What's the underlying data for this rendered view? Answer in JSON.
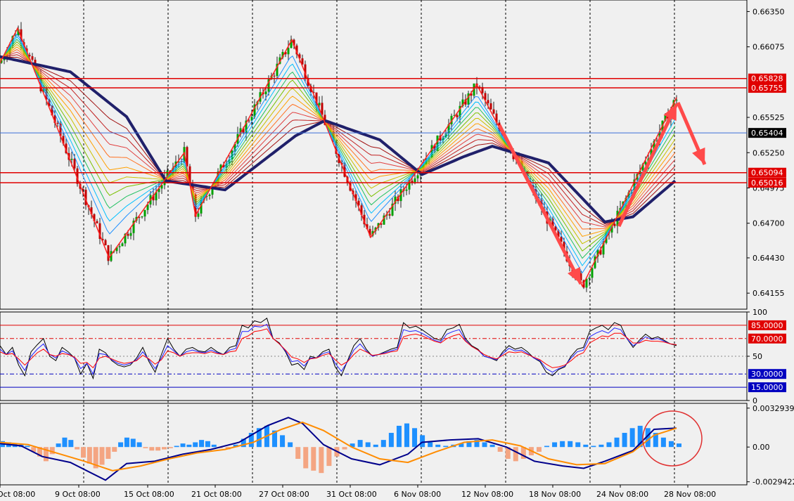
{
  "chart_data": [
    {
      "type": "candlestick",
      "panel": "price",
      "ylim": [
        0.6403,
        0.6644
      ],
      "y_ticks": [
        "0.66350",
        "0.66075",
        "0.65525",
        "0.65250",
        "0.64975",
        "0.64700",
        "0.64430",
        "0.64155"
      ],
      "x_labels": [
        "Oct 08:00",
        "9 Oct 08:00",
        "15 Oct 08:00",
        "21 Oct 08:00",
        "27 Oct 08:00",
        "31 Oct 08:00",
        "6 Nov 08:00",
        "12 Nov 08:00",
        "18 Nov 08:00",
        "24 Nov 08:00",
        "28 Nov 08:00"
      ],
      "horizontal_levels": [
        {
          "label": "0.65828",
          "value": 0.65828,
          "color": "#e00000"
        },
        {
          "label": "0.65755",
          "value": 0.65755,
          "color": "#e00000"
        },
        {
          "label": "0.65404",
          "value": 0.65404,
          "color": "#000000"
        },
        {
          "label": "0.65094",
          "value": 0.65094,
          "color": "#e00000"
        },
        {
          "label": "0.65016",
          "value": 0.65016,
          "color": "#e00000"
        }
      ],
      "zigzag_points": [
        [
          0,
          0.6595
        ],
        [
          25,
          0.6622
        ],
        [
          155,
          0.6443
        ],
        [
          262,
          0.6525
        ],
        [
          278,
          0.6476
        ],
        [
          415,
          0.6613
        ],
        [
          527,
          0.6459
        ],
        [
          678,
          0.6578
        ],
        [
          828,
          0.6421
        ],
        [
          962,
          0.6568
        ]
      ],
      "trend_line": [
        [
          -10,
          0.6601
        ],
        [
          100,
          0.6588
        ],
        [
          180,
          0.6553
        ],
        [
          236,
          0.6503
        ],
        [
          320,
          0.6496
        ],
        [
          420,
          0.6538
        ],
        [
          462,
          0.655
        ],
        [
          540,
          0.6535
        ],
        [
          600,
          0.6508
        ],
        [
          660,
          0.6522
        ],
        [
          700,
          0.653
        ],
        [
          780,
          0.6517
        ],
        [
          860,
          0.6471
        ],
        [
          900,
          0.6475
        ],
        [
          962,
          0.6504
        ]
      ],
      "colors": {
        "up": "#00a000",
        "down": "#c00000",
        "zigzag": "#ff2020",
        "trend": "#20206a"
      }
    },
    {
      "type": "line",
      "panel": "stochastic",
      "ylim": [
        0,
        100
      ],
      "y_ticks": [
        "100",
        "50",
        "0"
      ],
      "levels": [
        {
          "label": "85.0000",
          "value": 85,
          "color": "#e00000"
        },
        {
          "label": "70.0000",
          "value": 70,
          "color": "#e00000"
        },
        {
          "label": "30.0000",
          "value": 30,
          "color": "#0000c0"
        },
        {
          "label": "15.0000",
          "value": 15,
          "color": "#0000c0"
        }
      ],
      "series": [
        {
          "values": [
            62,
            52,
            60,
            40,
            28,
            55,
            63,
            70,
            50,
            45,
            60,
            55,
            48,
            30,
            42,
            25,
            58,
            54,
            45,
            40,
            38,
            40,
            48,
            60,
            44,
            32,
            52,
            70,
            58,
            50,
            58,
            60,
            56,
            55,
            60,
            55,
            52,
            60,
            62,
            85,
            82,
            90,
            88,
            93,
            70,
            65,
            55,
            40,
            42,
            35,
            50,
            48,
            55,
            58,
            38,
            28,
            45,
            62,
            70,
            58,
            50,
            52,
            55,
            58,
            60,
            88,
            82,
            84,
            80,
            75,
            70,
            68,
            80,
            82,
            86,
            70,
            62,
            58,
            50,
            48,
            45,
            55,
            62,
            58,
            60,
            55,
            48,
            44,
            32,
            28,
            35,
            38,
            50,
            58,
            60,
            78,
            82,
            85,
            80,
            88,
            85,
            70,
            60,
            68,
            75,
            70,
            72,
            68,
            64,
            62
          ]
        },
        {
          "values": [
            58,
            52,
            56,
            44,
            34,
            50,
            58,
            64,
            52,
            48,
            56,
            53,
            48,
            36,
            42,
            30,
            53,
            52,
            46,
            42,
            40,
            42,
            46,
            55,
            46,
            36,
            48,
            62,
            56,
            50,
            55,
            57,
            55,
            54,
            57,
            54,
            52,
            57,
            59,
            78,
            78,
            84,
            83,
            86,
            70,
            64,
            56,
            44,
            45,
            39,
            48,
            48,
            53,
            55,
            42,
            33,
            44,
            57,
            64,
            56,
            50,
            52,
            54,
            56,
            58,
            80,
            78,
            79,
            76,
            72,
            68,
            66,
            75,
            78,
            80,
            68,
            61,
            57,
            50,
            48,
            46,
            53,
            59,
            56,
            57,
            53,
            48,
            45,
            36,
            32,
            36,
            39,
            48,
            55,
            57,
            72,
            76,
            79,
            76,
            82,
            80,
            70,
            62,
            66,
            72,
            69,
            70,
            67,
            64,
            63
          ]
        },
        {
          "values": [
            55,
            52,
            53,
            47,
            40,
            47,
            54,
            58,
            52,
            50,
            53,
            52,
            49,
            42,
            43,
            37,
            48,
            50,
            47,
            44,
            42,
            43,
            45,
            51,
            47,
            41,
            46,
            56,
            54,
            50,
            53,
            54,
            54,
            53,
            55,
            53,
            52,
            55,
            56,
            70,
            73,
            78,
            79,
            81,
            70,
            64,
            57,
            49,
            47,
            43,
            47,
            48,
            51,
            53,
            46,
            40,
            44,
            52,
            58,
            55,
            51,
            52,
            53,
            55,
            56,
            72,
            74,
            75,
            73,
            70,
            67,
            65,
            70,
            73,
            75,
            67,
            61,
            57,
            52,
            49,
            47,
            51,
            55,
            54,
            55,
            52,
            49,
            46,
            41,
            37,
            38,
            40,
            45,
            51,
            54,
            65,
            69,
            73,
            72,
            76,
            76,
            71,
            65,
            65,
            68,
            67,
            67,
            66,
            64,
            63
          ]
        }
      ],
      "series_colors": [
        "#000000",
        "#2020ff",
        "#ff0000"
      ]
    },
    {
      "type": "bar",
      "panel": "oscillator",
      "ylim": [
        -0.0032,
        0.0037
      ],
      "y_ticks": [
        "0.0032939",
        "0.00",
        "-0.0029422"
      ],
      "histogram": [
        0.0005,
        0.0004,
        0.0003,
        0.0002,
        0.0001,
        -0.0004,
        -0.0008,
        -0.0012,
        -0.0006,
        0.0003,
        0.0008,
        0.0006,
        -0.0002,
        -0.0009,
        -0.0014,
        -0.0018,
        -0.0015,
        -0.001,
        -0.0004,
        0.0004,
        0.0008,
        0.0007,
        0.0004,
        -0.0001,
        -0.0003,
        -0.0003,
        -0.0002,
        -0.0001,
        0.0001,
        0.0003,
        0.0002,
        0.0004,
        0.0006,
        0.0005,
        0.0002,
        -0.0001,
        -0.0002,
        0.0002,
        0.0007,
        0.0012,
        0.0016,
        0.0018,
        0.0014,
        0.001,
        0.0004,
        -0.001,
        -0.0018,
        -0.002,
        -0.0022,
        -0.0016,
        -0.0008,
        -0.0002,
        0.0003,
        0.0006,
        0.0004,
        0.0002,
        0.0006,
        0.0012,
        0.0018,
        0.002,
        0.0016,
        0.001,
        0.0004,
        0.0002,
        0.0001,
        0.0002,
        0.0003,
        0.0005,
        0.0006,
        0.0004,
        0.0002,
        -0.0004,
        -0.001,
        -0.0012,
        -0.001,
        -0.0007,
        -0.0004,
        0.0001,
        0.0004,
        0.0005,
        0.0005,
        0.0004,
        0.0002,
        0.0001,
        0.0002,
        0.0004,
        0.0008,
        0.0012,
        0.0016,
        0.0018,
        0.0016,
        0.0012,
        0.0008,
        0.0005,
        0.0003
      ],
      "histogram_x": [
        0,
        8,
        16,
        24,
        32,
        40,
        48,
        56,
        64,
        72,
        80,
        88,
        96,
        104,
        112,
        120,
        128,
        136,
        144,
        152,
        160,
        168,
        176,
        184,
        192,
        200,
        208,
        216,
        224,
        232,
        240,
        248,
        256,
        264,
        272,
        280,
        290,
        300,
        310,
        320,
        330,
        340,
        350,
        360,
        370,
        380,
        390,
        400,
        410,
        420,
        430,
        440,
        450,
        460,
        470,
        480,
        490,
        500,
        510,
        520,
        530,
        540,
        550,
        560,
        570,
        580,
        590,
        600,
        610,
        620,
        630,
        640,
        650,
        660,
        670,
        680,
        690,
        700,
        710,
        720,
        730,
        740,
        750,
        760,
        770,
        780,
        790,
        800,
        810,
        820,
        830,
        840,
        850,
        860,
        870
      ],
      "series": [
        {
          "x": [
            0,
            30,
            60,
            100,
            150,
            180,
            220,
            260,
            300,
            340,
            380,
            410,
            430,
            460,
            500,
            540,
            580,
            600,
            640,
            680,
            720,
            760,
            800,
            830,
            860,
            900,
            930,
            962
          ],
          "values": [
            0.0003,
            0.0001,
            -0.0008,
            -0.0013,
            -0.0028,
            -0.0014,
            -0.0012,
            -0.0006,
            -0.0002,
            0.0004,
            0.0018,
            0.0025,
            0.002,
            0.0002,
            -0.001,
            -0.0015,
            -0.0006,
            0.0004,
            0.0006,
            0.0007,
            0.0,
            -0.0012,
            -0.0016,
            -0.0018,
            -0.0012,
            -0.0003,
            0.0015,
            0.0016
          ]
        },
        {
          "x": [
            0,
            40,
            80,
            120,
            160,
            200,
            240,
            280,
            320,
            360,
            400,
            430,
            460,
            500,
            540,
            580,
            620,
            660,
            700,
            740,
            780,
            820,
            860,
            900,
            930,
            962
          ],
          "values": [
            0.0004,
            0.0002,
            -0.0005,
            -0.0012,
            -0.002,
            -0.0016,
            -0.001,
            -0.0005,
            -0.0002,
            0.0004,
            0.0015,
            0.0021,
            0.0014,
            0.0,
            -0.001,
            -0.0013,
            -0.0004,
            0.0004,
            0.0006,
            0.0001,
            -0.001,
            -0.0015,
            -0.0014,
            -0.0004,
            0.001,
            0.0016
          ]
        }
      ],
      "series_colors": [
        "#00008b",
        "#ff8c00"
      ],
      "colors": {
        "positive": "#1e90ff",
        "negative": "#f4a582"
      }
    }
  ],
  "annotations": {
    "arrows_color": "#ff4a4a",
    "circle_color": "#e03030"
  },
  "axis": {
    "time_labels": [
      "Oct 08:00",
      "9 Oct 08:00",
      "15 Oct 08:00",
      "21 Oct 08:00",
      "27 Oct 08:00",
      "31 Oct 08:00",
      "6 Nov 08:00",
      "12 Nov 08:00",
      "18 Nov 08:00",
      "24 Nov 08:00",
      "28 Nov 08:00"
    ]
  }
}
